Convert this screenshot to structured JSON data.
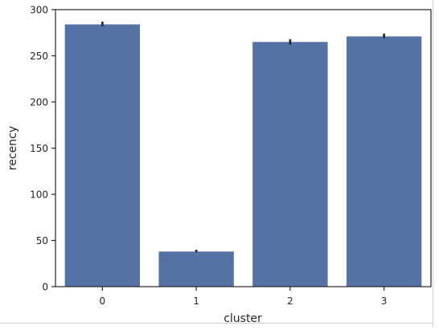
{
  "chart_data": {
    "type": "bar",
    "title": "",
    "xlabel": "cluster",
    "ylabel": "recency",
    "categories": [
      "0",
      "1",
      "2",
      "3"
    ],
    "values": [
      284,
      38,
      265,
      271
    ],
    "error_bars": [
      [
        282,
        287
      ],
      [
        37,
        40
      ],
      [
        262,
        268
      ],
      [
        269,
        274
      ]
    ],
    "ylim": [
      0,
      300
    ],
    "yticks": [
      0,
      50,
      100,
      150,
      200,
      250,
      300
    ],
    "ytick_labels": [
      "0",
      "50",
      "100",
      "150",
      "200",
      "250",
      "300"
    ],
    "grid": false,
    "legend": "none",
    "bar_color": "#5572a4",
    "error_color": "#262626"
  }
}
